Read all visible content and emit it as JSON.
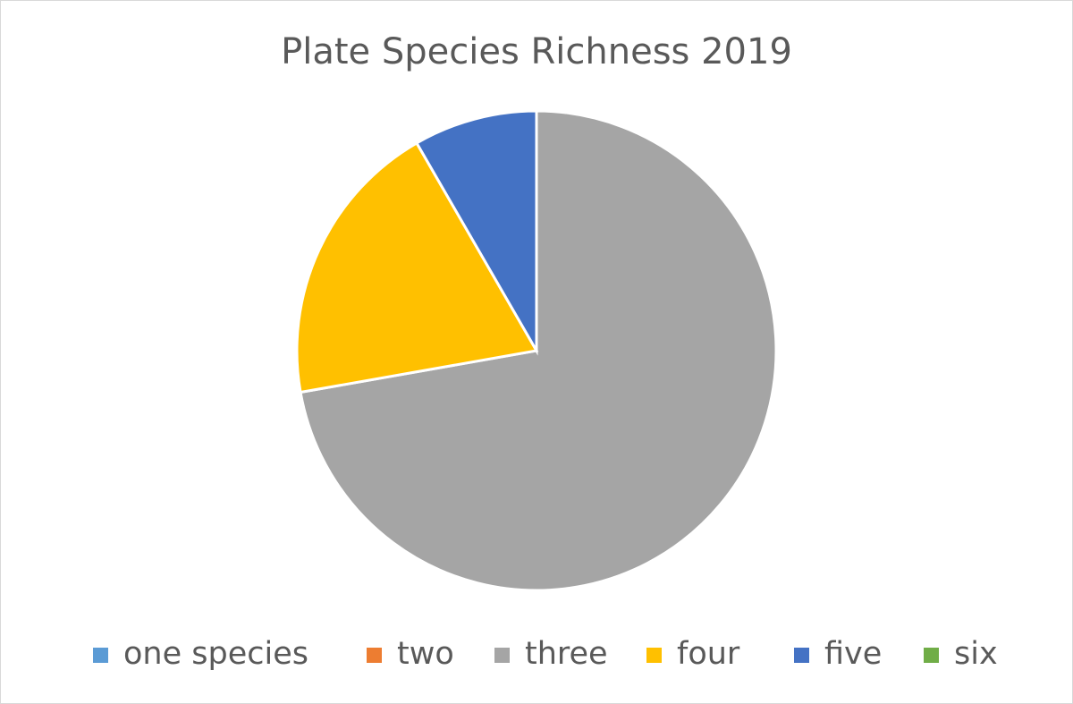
{
  "chart_data": {
    "type": "pie",
    "title": "Plate Species Richness 2019",
    "categories": [
      "one species",
      "two",
      "three",
      "four",
      "five",
      "six"
    ],
    "values": [
      0,
      0,
      26,
      7,
      3,
      0
    ],
    "colors": [
      "#5b9bd5",
      "#ed7d31",
      "#a5a5a5",
      "#ffc000",
      "#4472c4",
      "#70ad47"
    ],
    "legend": "bottom"
  }
}
